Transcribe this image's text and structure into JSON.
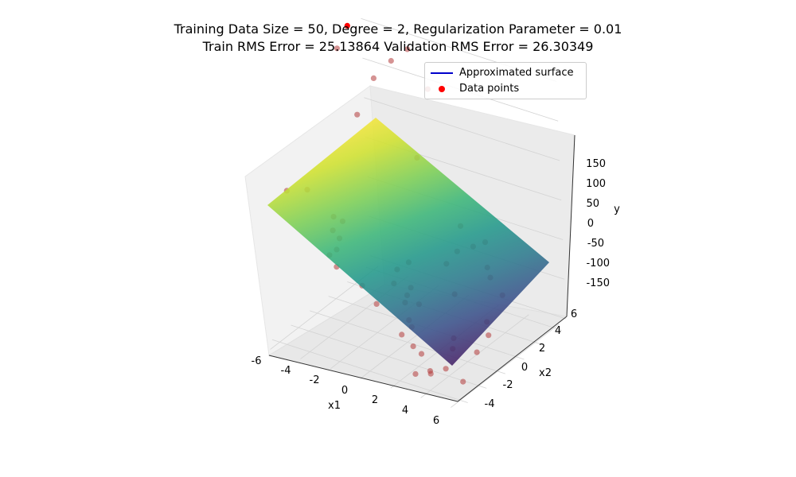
{
  "title": {
    "line1": "Training Data Size = 50, Degree = 2, Regularization Parameter = 0.01",
    "line2": "Train RMS Error = 25.13864 Validation RMS Error = 26.30349"
  },
  "legend": {
    "items": [
      {
        "label": "Approximated surface",
        "color": "#0000cc",
        "kind": "line"
      },
      {
        "label": "Data points",
        "color": "#ff0000",
        "kind": "marker"
      }
    ]
  },
  "chart_data": {
    "type": "scatter",
    "subtype": "3d-surface-with-scatter",
    "xlabel": "x1",
    "ylabel": "x2",
    "zlabel": "y",
    "x_ticks": [
      -6,
      -4,
      -2,
      0,
      2,
      4,
      6
    ],
    "y_ticks": [
      -4,
      -2,
      0,
      2,
      4,
      6
    ],
    "z_ticks": [
      -150,
      -100,
      -50,
      0,
      50,
      100,
      150
    ],
    "xlim": [
      -6.5,
      6.5
    ],
    "ylim": [
      -5,
      6.5
    ],
    "zlim": [
      -160,
      190
    ],
    "grid": true,
    "legend_position": "top-right",
    "colormap": "viridis",
    "surface_corners": [
      {
        "x1": -6.5,
        "x2": -5,
        "y": 90
      },
      {
        "x1": 6.5,
        "x2": -5,
        "y": -155
      },
      {
        "x1": 6.5,
        "x2": 6.5,
        "y": -125
      },
      {
        "x1": -6.5,
        "x2": 6.5,
        "y": 175
      }
    ],
    "series": [
      {
        "name": "Data points",
        "points": [
          [
            -6.2,
            4.6,
            160
          ],
          [
            -6.3,
            3.6,
            140
          ],
          [
            -4.5,
            4.5,
            105
          ],
          [
            -4.0,
            5.6,
            120
          ],
          [
            -3.2,
            6.1,
            135
          ],
          [
            -1.8,
            5.9,
            95
          ],
          [
            -4.8,
            3.1,
            70
          ],
          [
            -1.6,
            4.2,
            25
          ],
          [
            -5.3,
            -1.6,
            15
          ],
          [
            -5.7,
            -3.1,
            25
          ],
          [
            -4.9,
            0.4,
            -35
          ],
          [
            -4.7,
            1.0,
            -45
          ],
          [
            -4.6,
            -0.2,
            -45
          ],
          [
            -4.3,
            0.0,
            -55
          ],
          [
            -4.0,
            -0.8,
            -60
          ],
          [
            -3.2,
            -2.1,
            -65
          ],
          [
            -4.5,
            -0.8,
            -70
          ],
          [
            -0.7,
            0.3,
            -75
          ],
          [
            -0.1,
            0.6,
            -65
          ],
          [
            -1.6,
            -2.0,
            -80
          ],
          [
            -0.5,
            -0.4,
            -85
          ],
          [
            0.3,
            0.1,
            -90
          ],
          [
            0.1,
            0.0,
            -100
          ],
          [
            0.2,
            -0.4,
            -105
          ],
          [
            -1.2,
            -1.2,
            -108
          ],
          [
            3.1,
            1.2,
            -5
          ],
          [
            3.7,
            1.5,
            -30
          ],
          [
            4.4,
            1.8,
            -55
          ],
          [
            4.0,
            2.3,
            -30
          ],
          [
            4.9,
            1.3,
            -60
          ],
          [
            5.8,
            1.1,
            -75
          ],
          [
            2.5,
            0.5,
            -50
          ],
          [
            3.0,
            0.9,
            -35
          ],
          [
            3.5,
            -0.3,
            -75
          ],
          [
            1.2,
            -0.5,
            -100
          ],
          [
            5.2,
            0.3,
            -105
          ],
          [
            5.6,
            -0.2,
            -115
          ],
          [
            1.2,
            -1.6,
            -110
          ],
          [
            1.5,
            -1.8,
            -115
          ],
          [
            3.9,
            -1.2,
            -120
          ],
          [
            4.0,
            -1.5,
            -130
          ],
          [
            5.1,
            -0.7,
            -135
          ],
          [
            2.0,
            -2.5,
            -130
          ],
          [
            1.0,
            -2.1,
            -125
          ],
          [
            2.6,
            -2.6,
            -135
          ],
          [
            3.5,
            -3.1,
            -150
          ],
          [
            3.4,
            -3.0,
            -148
          ],
          [
            5.0,
            -2.1,
            -160
          ],
          [
            2.8,
            -3.6,
            -150
          ],
          [
            4.4,
            -2.9,
            -140
          ]
        ]
      }
    ]
  }
}
